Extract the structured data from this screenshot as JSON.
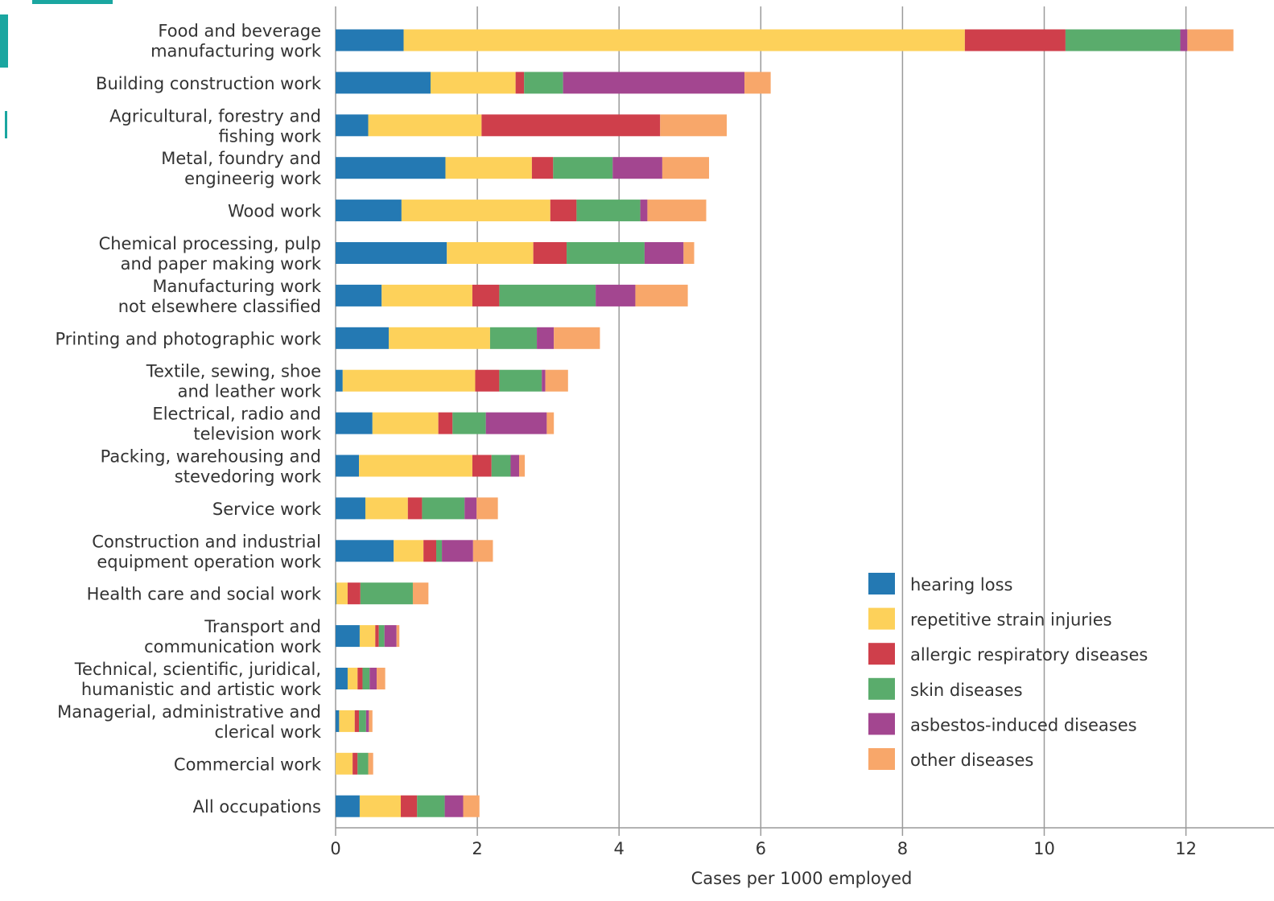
{
  "chart_data": {
    "type": "bar",
    "orientation": "horizontal",
    "stacked": true,
    "xlabel": "Cases per 1000 employed",
    "xlim": [
      0,
      13
    ],
    "xticks": [
      0,
      2,
      4,
      6,
      8,
      10,
      12
    ],
    "grid": "vertical",
    "legend_position": "bottom-right",
    "categories": [
      [
        "Food and beverage",
        "manufacturing work"
      ],
      [
        "Building construction work"
      ],
      [
        "Agricultural, forestry and",
        "fishing work"
      ],
      [
        "Metal, foundry and",
        "engineerig work"
      ],
      [
        "Wood work"
      ],
      [
        "Chemical processing, pulp",
        "and paper making work"
      ],
      [
        "Manufacturing work",
        "not elsewhere classified"
      ],
      [
        "Printing and photographic work"
      ],
      [
        "Textile, sewing, shoe",
        "and leather work"
      ],
      [
        "Electrical, radio and",
        "television work"
      ],
      [
        "Packing, warehousing and",
        "stevedoring work"
      ],
      [
        "Service work"
      ],
      [
        "Construction and industrial",
        "equipment operation work"
      ],
      [
        "Health care and social work"
      ],
      [
        "Transport and",
        "communication work"
      ],
      [
        "Technical, scientific, juridical,",
        "humanistic and artistic work"
      ],
      [
        "Managerial, administrative and",
        "clerical work"
      ],
      [
        "Commercial work"
      ],
      [
        "All occupations"
      ]
    ],
    "series": [
      {
        "name": "hearing loss",
        "color": "#2479b3",
        "values": [
          0.96,
          1.34,
          0.46,
          1.55,
          0.93,
          1.57,
          0.65,
          0.75,
          0.1,
          0.52,
          0.33,
          0.42,
          0.82,
          0.01,
          0.34,
          0.17,
          0.05,
          0.0,
          0.34
        ]
      },
      {
        "name": "repetitive strain injuries",
        "color": "#fdd15a",
        "values": [
          7.92,
          1.2,
          1.6,
          1.22,
          2.1,
          1.22,
          1.28,
          1.43,
          1.87,
          0.93,
          1.6,
          0.6,
          0.42,
          0.16,
          0.22,
          0.14,
          0.22,
          0.24,
          0.58
        ]
      },
      {
        "name": "allergic respiratory diseases",
        "color": "#cf3f4b",
        "values": [
          1.42,
          0.12,
          2.52,
          0.3,
          0.37,
          0.47,
          0.38,
          0.0,
          0.34,
          0.2,
          0.27,
          0.2,
          0.18,
          0.18,
          0.05,
          0.07,
          0.06,
          0.07,
          0.23
        ]
      },
      {
        "name": "skin diseases",
        "color": "#5aac6c",
        "values": [
          1.62,
          0.55,
          0.0,
          0.84,
          0.9,
          1.1,
          1.36,
          0.66,
          0.6,
          0.47,
          0.27,
          0.6,
          0.08,
          0.74,
          0.08,
          0.1,
          0.1,
          0.15,
          0.39
        ]
      },
      {
        "name": "asbestos-induced diseases",
        "color": "#a34690",
        "values": [
          0.1,
          2.56,
          0.0,
          0.7,
          0.1,
          0.55,
          0.56,
          0.24,
          0.05,
          0.86,
          0.12,
          0.17,
          0.44,
          0.0,
          0.17,
          0.1,
          0.04,
          0.0,
          0.26
        ]
      },
      {
        "name": "other diseases",
        "color": "#f8a76a",
        "values": [
          0.65,
          0.37,
          0.94,
          0.66,
          0.83,
          0.15,
          0.74,
          0.65,
          0.32,
          0.1,
          0.08,
          0.3,
          0.28,
          0.22,
          0.04,
          0.12,
          0.05,
          0.07,
          0.23
        ]
      }
    ]
  }
}
